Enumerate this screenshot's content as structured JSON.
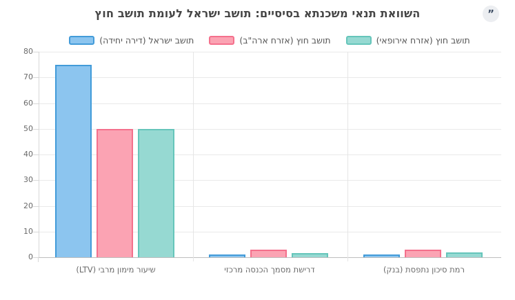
{
  "header": {
    "quote_glyph": "”"
  },
  "chart_data": {
    "type": "bar",
    "title": "השוואת תנאי משכנתא בסיסיים: תושב ישראל לעומת תושב חוץ",
    "categories": [
      "שיעור מימון מרבי (LTV)",
      "דרישת מסמך הכנסה מרכזי",
      "רמת סיכון נתפסת (בנק)"
    ],
    "series": [
      {
        "name": "תושב ישראל (דירה יחידה)",
        "values": [
          75,
          1,
          1
        ],
        "fill": "#8CC5EF",
        "border": "#429BD9"
      },
      {
        "name": "תושב חוץ (אזרח ארה\"ב)",
        "values": [
          50,
          3,
          3
        ],
        "fill": "#FBA3B3",
        "border": "#F4708C"
      },
      {
        "name": "תושב חוץ (אזרח אירופאי)",
        "values": [
          50,
          1.5,
          2
        ],
        "fill": "#96D9D2",
        "border": "#65C5BA"
      }
    ],
    "ylim": [
      0,
      80
    ],
    "yticks": [
      0,
      10,
      20,
      30,
      40,
      50,
      60,
      70,
      80
    ],
    "xlabel": "",
    "ylabel": "",
    "grid": true,
    "legend_position": "top"
  }
}
